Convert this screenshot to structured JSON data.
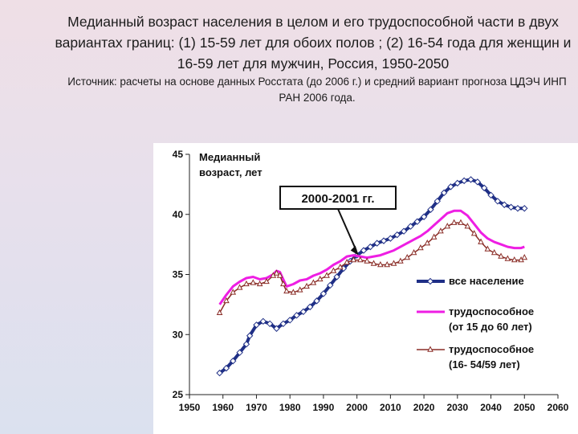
{
  "slide": {
    "title": "Медианный возраст населения в целом и его трудоспособной части в двух вариантах границ: (1) 15-59 лет для обоих полов ; (2) 16-54 года для женщин и 16-59 лет для мужчин, Россия, 1950-2050",
    "source": "Источник: расчеты на основе данных Росстата (до 2006 г.) и средний вариант прогноза ЦДЭЧ ИНП РАН 2006 года."
  },
  "chart_data": {
    "type": "line",
    "ylabel_lines": [
      "Медианный",
      "возраст, лет"
    ],
    "xlim": [
      1950,
      2060
    ],
    "ylim": [
      25,
      45
    ],
    "x_ticks": [
      1950,
      1960,
      1970,
      1980,
      1990,
      2000,
      2010,
      2020,
      2030,
      2040,
      2050,
      2060
    ],
    "y_ticks": [
      25,
      30,
      35,
      40,
      45
    ],
    "annotation": {
      "text": "2000-2001 гг.",
      "x": 2000.5,
      "y": 36.6
    },
    "series": [
      {
        "name": "все население",
        "color": "#1f2f86",
        "marker": "diamond",
        "points": [
          [
            1959,
            26.8
          ],
          [
            1961,
            27.2
          ],
          [
            1963,
            27.8
          ],
          [
            1965,
            28.5
          ],
          [
            1967,
            29.2
          ],
          [
            1968,
            29.9
          ],
          [
            1970,
            30.8
          ],
          [
            1972,
            31.1
          ],
          [
            1974,
            30.9
          ],
          [
            1976,
            30.5
          ],
          [
            1978,
            30.9
          ],
          [
            1980,
            31.2
          ],
          [
            1982,
            31.6
          ],
          [
            1984,
            31.9
          ],
          [
            1986,
            32.3
          ],
          [
            1988,
            32.8
          ],
          [
            1990,
            33.4
          ],
          [
            1992,
            34.1
          ],
          [
            1994,
            34.8
          ],
          [
            1996,
            35.5
          ],
          [
            1998,
            36.1
          ],
          [
            2000,
            36.6
          ],
          [
            2002,
            37.0
          ],
          [
            2004,
            37.3
          ],
          [
            2006,
            37.6
          ],
          [
            2008,
            37.8
          ],
          [
            2010,
            38.0
          ],
          [
            2012,
            38.3
          ],
          [
            2014,
            38.6
          ],
          [
            2016,
            39.0
          ],
          [
            2018,
            39.4
          ],
          [
            2020,
            39.8
          ],
          [
            2022,
            40.4
          ],
          [
            2024,
            41.1
          ],
          [
            2026,
            41.8
          ],
          [
            2028,
            42.3
          ],
          [
            2030,
            42.6
          ],
          [
            2032,
            42.8
          ],
          [
            2034,
            42.9
          ],
          [
            2036,
            42.7
          ],
          [
            2038,
            42.2
          ],
          [
            2040,
            41.6
          ],
          [
            2042,
            41.1
          ],
          [
            2044,
            40.8
          ],
          [
            2046,
            40.6
          ],
          [
            2048,
            40.5
          ],
          [
            2050,
            40.5
          ]
        ]
      },
      {
        "name_lines": [
          "трудоспособное",
          "(от 15 до 60 лет)"
        ],
        "color": "#ee1ee3",
        "marker": "none",
        "points": [
          [
            1959,
            32.5
          ],
          [
            1961,
            33.3
          ],
          [
            1963,
            34.0
          ],
          [
            1965,
            34.4
          ],
          [
            1967,
            34.7
          ],
          [
            1969,
            34.8
          ],
          [
            1971,
            34.6
          ],
          [
            1973,
            34.7
          ],
          [
            1975,
            35.0
          ],
          [
            1976,
            35.3
          ],
          [
            1977,
            35.2
          ],
          [
            1978,
            34.6
          ],
          [
            1979,
            34.0
          ],
          [
            1981,
            34.2
          ],
          [
            1983,
            34.5
          ],
          [
            1985,
            34.6
          ],
          [
            1987,
            34.9
          ],
          [
            1989,
            35.1
          ],
          [
            1991,
            35.4
          ],
          [
            1993,
            35.8
          ],
          [
            1995,
            36.1
          ],
          [
            1997,
            36.5
          ],
          [
            1999,
            36.6
          ],
          [
            2001,
            36.5
          ],
          [
            2003,
            36.4
          ],
          [
            2005,
            36.5
          ],
          [
            2007,
            36.6
          ],
          [
            2009,
            36.8
          ],
          [
            2011,
            37.0
          ],
          [
            2013,
            37.3
          ],
          [
            2015,
            37.6
          ],
          [
            2017,
            37.9
          ],
          [
            2019,
            38.2
          ],
          [
            2021,
            38.6
          ],
          [
            2023,
            39.1
          ],
          [
            2025,
            39.6
          ],
          [
            2027,
            40.1
          ],
          [
            2029,
            40.3
          ],
          [
            2031,
            40.3
          ],
          [
            2033,
            39.9
          ],
          [
            2035,
            39.2
          ],
          [
            2037,
            38.5
          ],
          [
            2039,
            38.0
          ],
          [
            2041,
            37.7
          ],
          [
            2043,
            37.5
          ],
          [
            2045,
            37.3
          ],
          [
            2047,
            37.2
          ],
          [
            2049,
            37.2
          ],
          [
            2050,
            37.3
          ]
        ]
      },
      {
        "name_lines": [
          "трудоспособное",
          "(16- 54/59 лет)"
        ],
        "color": "#8a2d27",
        "marker": "triangle",
        "points": [
          [
            1959,
            31.8
          ],
          [
            1961,
            32.8
          ],
          [
            1963,
            33.5
          ],
          [
            1965,
            33.9
          ],
          [
            1967,
            34.2
          ],
          [
            1969,
            34.3
          ],
          [
            1971,
            34.2
          ],
          [
            1973,
            34.4
          ],
          [
            1975,
            34.9
          ],
          [
            1976,
            35.1
          ],
          [
            1977,
            34.9
          ],
          [
            1978,
            34.2
          ],
          [
            1979,
            33.6
          ],
          [
            1981,
            33.5
          ],
          [
            1983,
            33.7
          ],
          [
            1985,
            34.0
          ],
          [
            1987,
            34.3
          ],
          [
            1989,
            34.6
          ],
          [
            1991,
            34.9
          ],
          [
            1993,
            35.3
          ],
          [
            1995,
            35.6
          ],
          [
            1997,
            36.0
          ],
          [
            1999,
            36.2
          ],
          [
            2001,
            36.2
          ],
          [
            2003,
            36.1
          ],
          [
            2005,
            35.9
          ],
          [
            2007,
            35.8
          ],
          [
            2009,
            35.8
          ],
          [
            2011,
            35.9
          ],
          [
            2013,
            36.1
          ],
          [
            2015,
            36.4
          ],
          [
            2017,
            36.8
          ],
          [
            2019,
            37.2
          ],
          [
            2021,
            37.6
          ],
          [
            2023,
            38.1
          ],
          [
            2025,
            38.6
          ],
          [
            2027,
            39.0
          ],
          [
            2029,
            39.3
          ],
          [
            2031,
            39.3
          ],
          [
            2033,
            39.0
          ],
          [
            2035,
            38.4
          ],
          [
            2037,
            37.7
          ],
          [
            2039,
            37.1
          ],
          [
            2041,
            36.8
          ],
          [
            2043,
            36.5
          ],
          [
            2045,
            36.3
          ],
          [
            2047,
            36.2
          ],
          [
            2049,
            36.2
          ],
          [
            2050,
            36.4
          ]
        ]
      }
    ]
  }
}
